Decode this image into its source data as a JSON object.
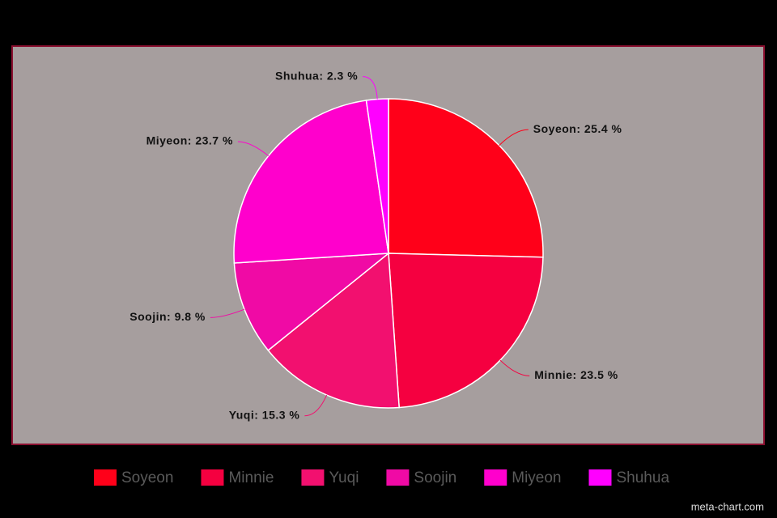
{
  "chart_data": {
    "type": "pie",
    "categories": [
      "Soyeon",
      "Minnie",
      "Yuqi",
      "Soojin",
      "Miyeon",
      "Shuhua"
    ],
    "values": [
      25.4,
      23.5,
      15.3,
      9.8,
      23.7,
      2.3
    ],
    "value_labels": [
      "Soyeon: 25.4 %",
      "Minnie: 23.5 %",
      "Yuqi: 15.3 %",
      "Soojin: 9.8 %",
      "Miyeon: 23.7 %",
      "Shuhua: 2.3 %"
    ],
    "colors": [
      "#ff0019",
      "#f50040",
      "#f2106f",
      "#f00aa5",
      "#ff00cc",
      "#ff00ff"
    ],
    "legend": "bottom",
    "watermark": "meta-chart.com"
  }
}
